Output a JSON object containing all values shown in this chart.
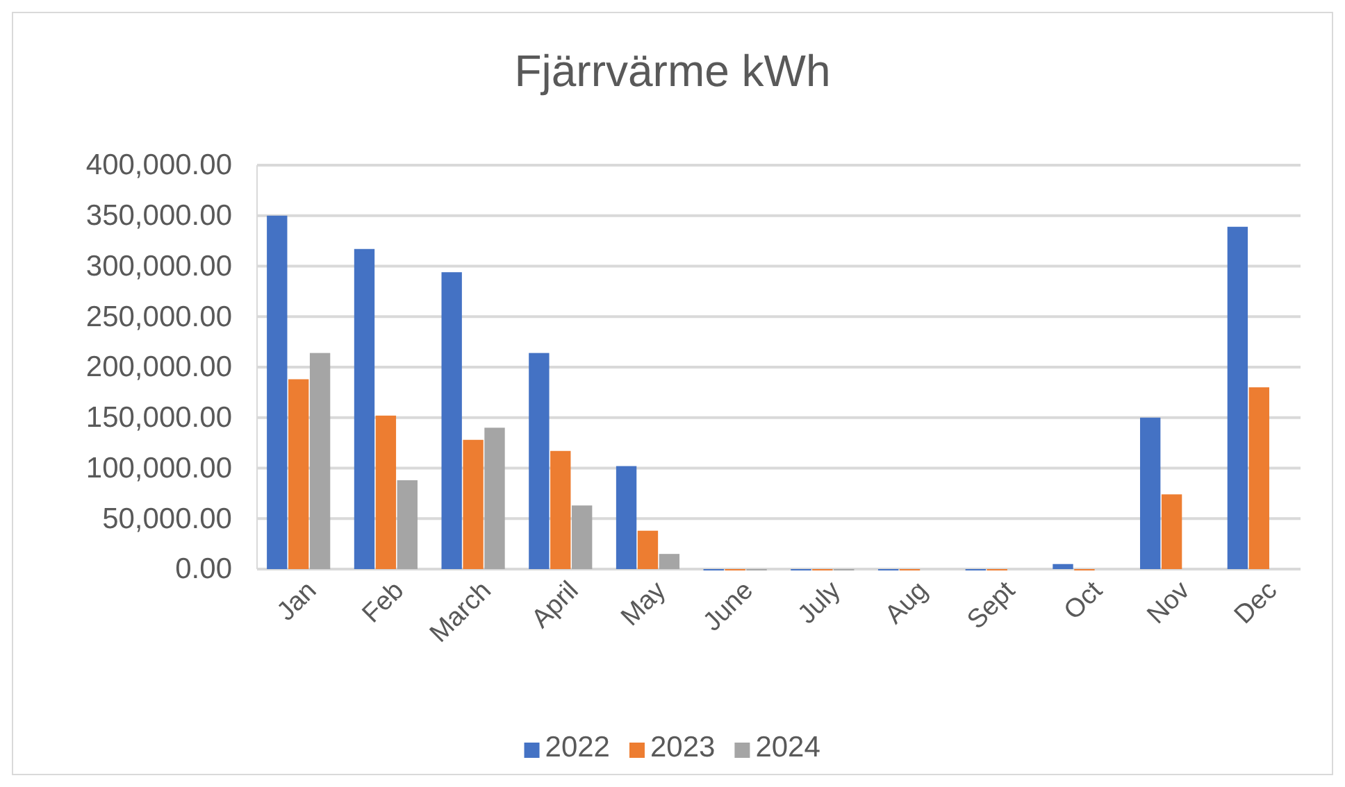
{
  "chart_data": {
    "type": "bar",
    "title": "Fjärrvärme kWh",
    "categories": [
      "Jan",
      "Feb",
      "March",
      "April",
      "May",
      "June",
      "July",
      "Aug",
      "Sept",
      "Oct",
      "Nov",
      "Dec"
    ],
    "series": [
      {
        "name": "2022",
        "color": "#4472c4",
        "values": [
          350000,
          317000,
          294000,
          214000,
          102000,
          0,
          0,
          0,
          0,
          5000,
          150000,
          339000
        ]
      },
      {
        "name": "2023",
        "color": "#ed7d31",
        "values": [
          188000,
          152000,
          128000,
          117000,
          38000,
          0,
          0,
          0,
          0,
          0,
          74000,
          180000
        ]
      },
      {
        "name": "2024",
        "color": "#a5a5a5",
        "values": [
          214000,
          88000,
          140000,
          63000,
          15000,
          0,
          0,
          null,
          null,
          null,
          null,
          null
        ]
      }
    ],
    "ylim": [
      0,
      400000
    ],
    "yticks": [
      {
        "value": 0,
        "label": "0.00"
      },
      {
        "value": 50000,
        "label": "50,000.00"
      },
      {
        "value": 100000,
        "label": "100,000.00"
      },
      {
        "value": 150000,
        "label": "150,000.00"
      },
      {
        "value": 200000,
        "label": "200,000.00"
      },
      {
        "value": 250000,
        "label": "250,000.00"
      },
      {
        "value": 300000,
        "label": "300,000.00"
      },
      {
        "value": 350000,
        "label": "350,000.00"
      },
      {
        "value": 400000,
        "label": "400,000.00"
      }
    ],
    "grid": "y",
    "legend": "bottom"
  }
}
